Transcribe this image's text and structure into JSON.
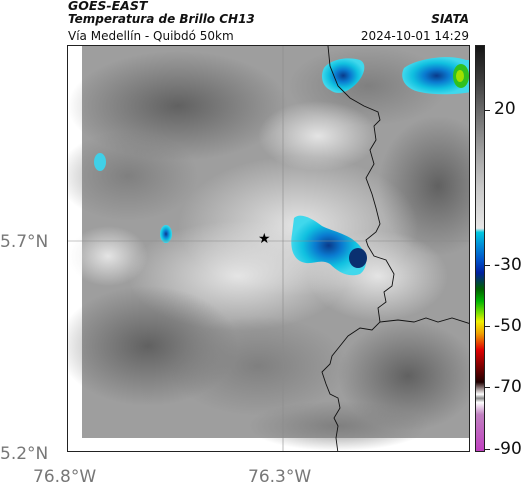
{
  "header": {
    "title": "GOES-EAST",
    "subtitle": "Temperatura de Brillo CH13",
    "organization": "SIATA",
    "route": "Vía Medellín - Quibdó 50km",
    "timestamp": "2024-10-01 14:29"
  },
  "map": {
    "lat_labels": [
      "5.7°N",
      "5.2°N"
    ],
    "lon_labels": [
      "76.8°W",
      "76.3°W"
    ],
    "marker": "star-icon"
  },
  "colorbar": {
    "tick_labels": [
      "20",
      "-30",
      "-50",
      "-70",
      "-90"
    ],
    "colors": {
      "gray_dark": "#3a3a3a",
      "gray_light": "#e6e6e6",
      "cyan": "#00c8e0",
      "blue": "#0050c8",
      "green": "#00b400",
      "yellow": "#f0f000",
      "red": "#e00000",
      "magenta": "#c040c0"
    }
  }
}
